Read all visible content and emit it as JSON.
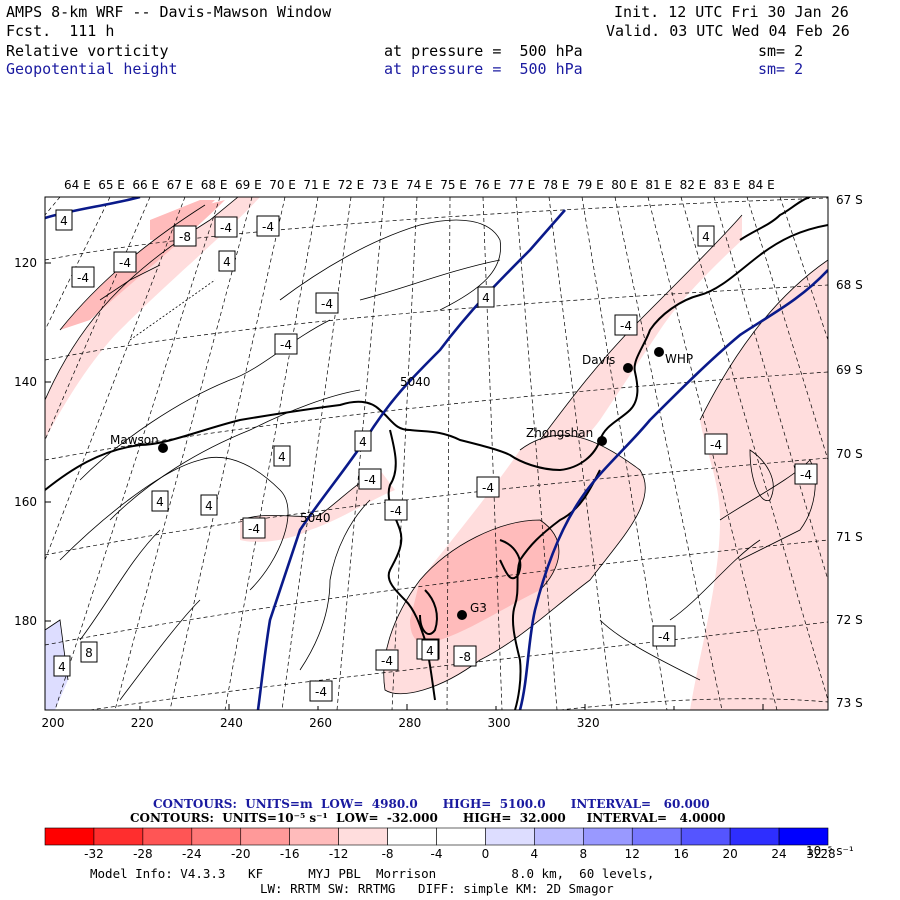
{
  "header": {
    "title": "AMPS 8-km WRF -- Davis-Mawson Window",
    "forecast": "Fcst.  111 h",
    "init": "Init. 12 UTC Fri 30 Jan 26",
    "valid": "Valid. 03 UTC Wed 04 Feb 26",
    "field1": "Relative vorticity",
    "field1_level": "at pressure =  500 hPa",
    "field1_sm": "sm= 2",
    "field2": "Geopotential height",
    "field2_level": "at pressure =  500 hPa",
    "field2_sm": "sm= 2"
  },
  "map": {
    "lon_labels": [
      "64 E",
      "65 E",
      "66 E",
      "67 E",
      "68 E",
      "69 E",
      "70 E",
      "71 E",
      "72 E",
      "73 E",
      "74 E",
      "75 E",
      "76 E",
      "77 E",
      "78 E",
      "79 E",
      "80 E",
      "81 E",
      "82 E",
      "83 E",
      "84 E"
    ],
    "lat_labels": [
      "67 S",
      "68 S",
      "69 S",
      "70 S",
      "71 S",
      "72 S",
      "73 S"
    ],
    "x_ticks": [
      "200",
      "220",
      "240",
      "260",
      "280",
      "300",
      "320"
    ],
    "y_ticks": [
      "120",
      "140",
      "160",
      "180"
    ],
    "stations": [
      {
        "name": "Mawson"
      },
      {
        "name": "Davis"
      },
      {
        "name": "WHP"
      },
      {
        "name": "Zhongshan"
      },
      {
        "name": "G3"
      }
    ],
    "height_labels": [
      "5040",
      "5040"
    ],
    "contour_labels": [
      "4",
      "-8",
      "-4",
      "-4",
      "-4",
      "4",
      "-4",
      "4",
      "4",
      "-4",
      "-4",
      "-4",
      "4",
      "4",
      "-4",
      "4",
      "-4",
      "-4",
      "4",
      "-4",
      "-4",
      "-4",
      "-4",
      "-4",
      "-8",
      "-4",
      "-4",
      "4",
      "8",
      "4",
      "4"
    ]
  },
  "captions": {
    "contours1": "CONTOURS:  UNITS=m  LOW=  4980.0      HIGH=  5100.0      INTERVAL=   60.000",
    "contours2": "CONTOURS:  UNITS=10⁻⁵ s⁻¹  LOW=  -32.000      HIGH=  32.000     INTERVAL=   4.0000"
  },
  "colorbar": {
    "colors": [
      "#ff0000",
      "#ff2e2e",
      "#ff5555",
      "#ff7777",
      "#ff9999",
      "#ffbbbb",
      "#ffdddd",
      "#ffffff",
      "#ffffff",
      "#ddddff",
      "#bbbbff",
      "#9999ff",
      "#7777ff",
      "#5555ff",
      "#2e2eff",
      "#0000ff"
    ],
    "labels": [
      "-32",
      "-28",
      "-24",
      "-20",
      "-16",
      "-12",
      "-8",
      "-4",
      "0",
      "4",
      "8",
      "12",
      "16",
      "20",
      "24",
      "28",
      "32"
    ],
    "units": "10⁻⁵ s⁻¹"
  },
  "footer": {
    "line1": "Model Info: V4.3.3   KF      MYJ PBL  Morrison          8.0 km,  60 levels,",
    "line2": "LW: RRTM SW: RRTMG   DIFF: simple KM: 2D Smagor"
  }
}
